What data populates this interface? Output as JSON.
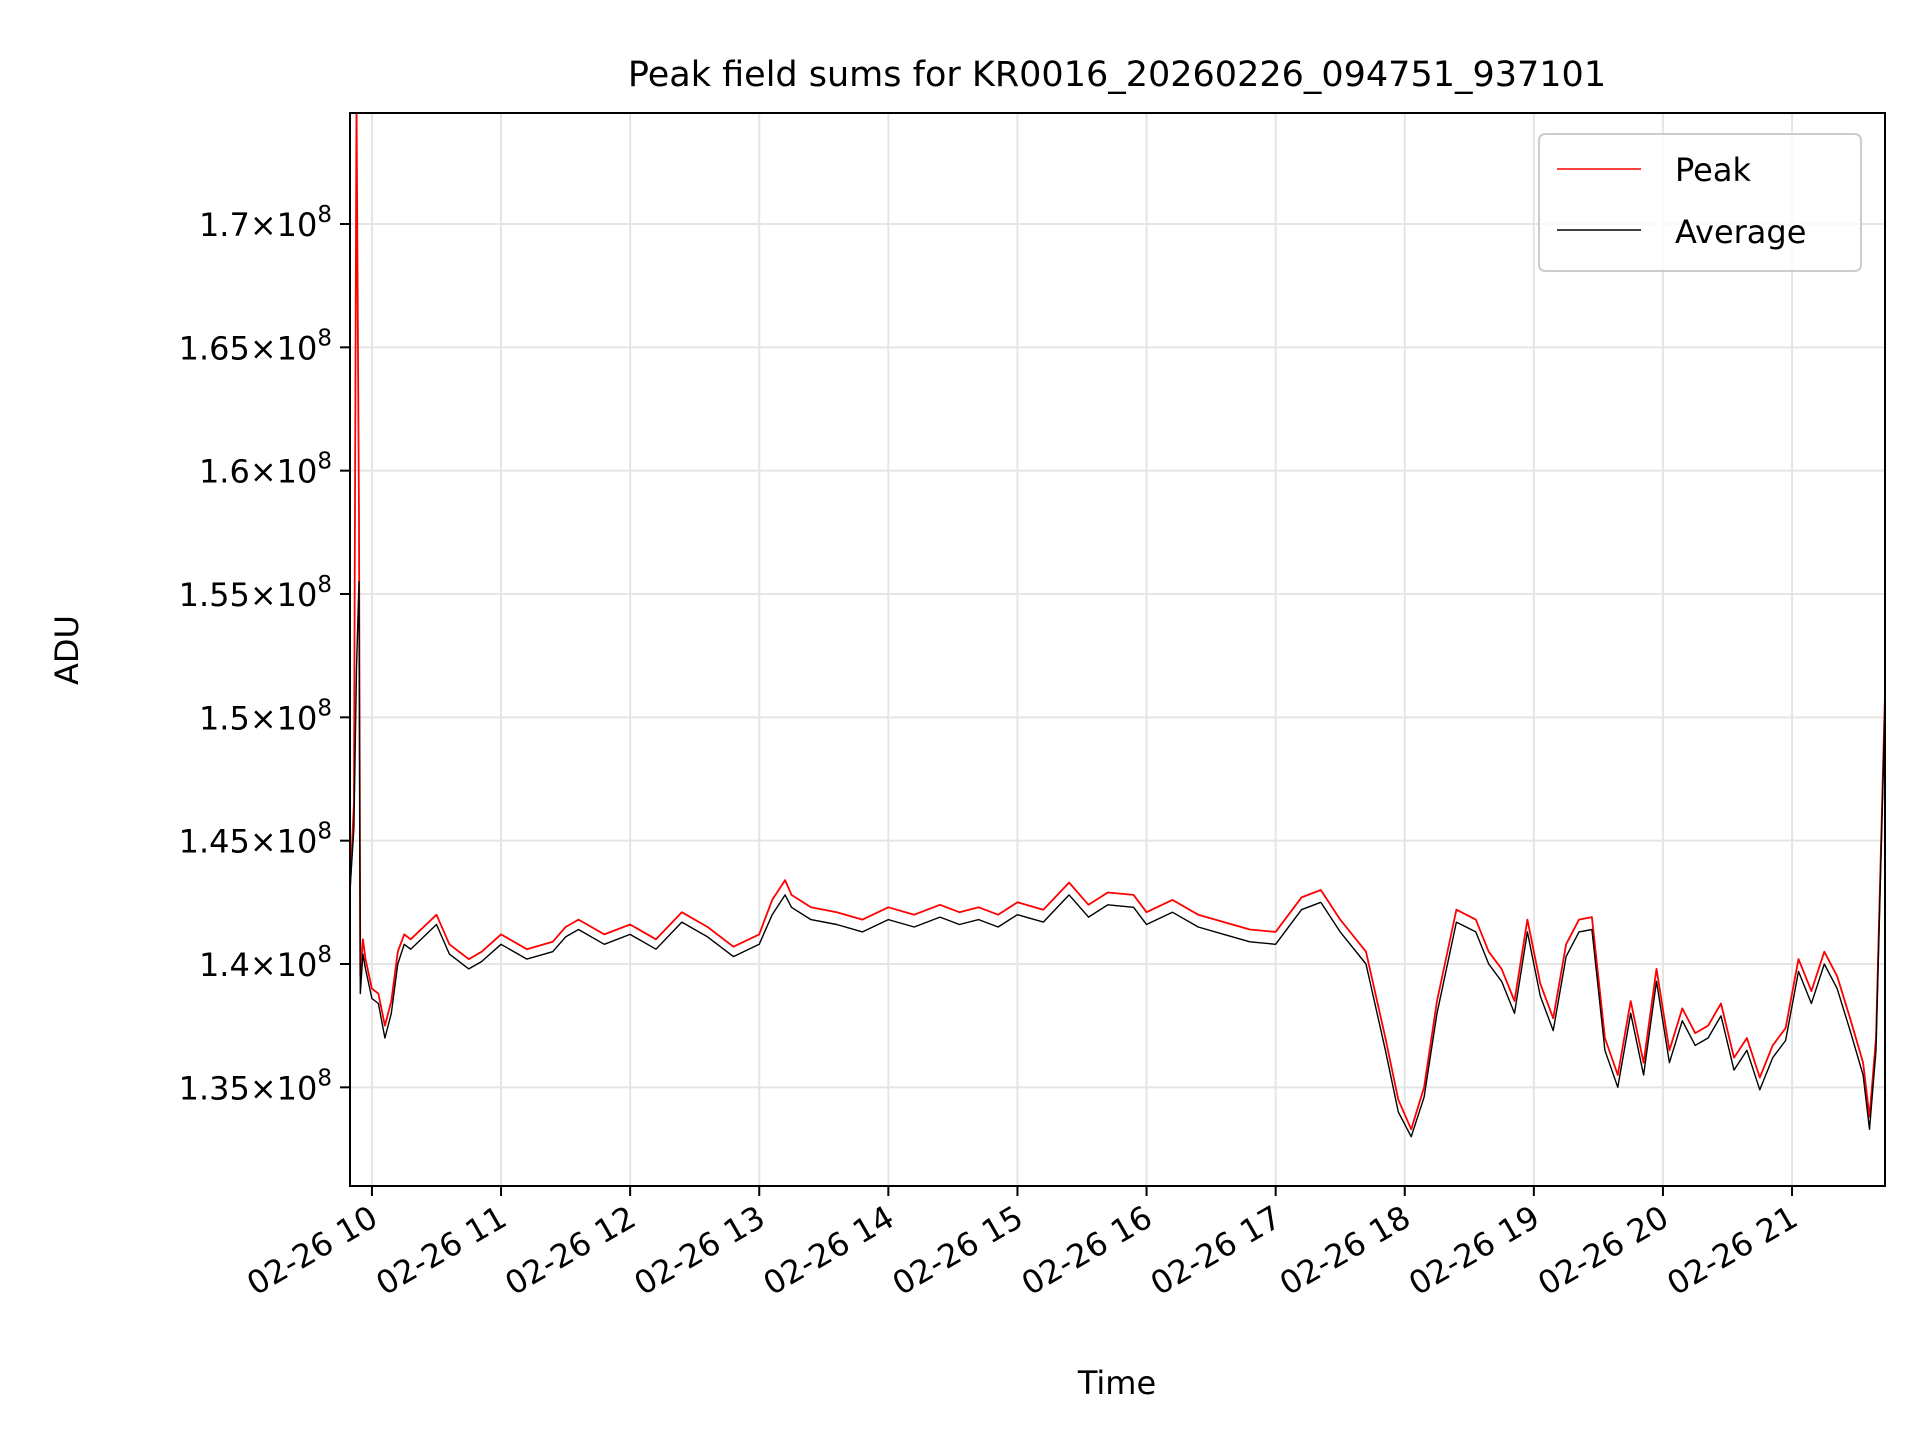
{
  "chart_data": {
    "type": "line",
    "title": "Peak field sums for KR0016_20260226_094751_937101",
    "xlabel": "Time",
    "ylabel": "ADU",
    "xlim_hours": [
      9.83,
      21.72
    ],
    "ylim": [
      131000000,
      174500000
    ],
    "grid": true,
    "legend_position": "upper right",
    "x_ticks": [
      {
        "value": 10,
        "label": "02-26 10"
      },
      {
        "value": 11,
        "label": "02-26 11"
      },
      {
        "value": 12,
        "label": "02-26 12"
      },
      {
        "value": 13,
        "label": "02-26 13"
      },
      {
        "value": 14,
        "label": "02-26 14"
      },
      {
        "value": 15,
        "label": "02-26 15"
      },
      {
        "value": 16,
        "label": "02-26 16"
      },
      {
        "value": 17,
        "label": "02-26 17"
      },
      {
        "value": 18,
        "label": "02-26 18"
      },
      {
        "value": 19,
        "label": "02-26 19"
      },
      {
        "value": 20,
        "label": "02-26 20"
      },
      {
        "value": 21,
        "label": "02-26 21"
      }
    ],
    "y_ticks": [
      {
        "value": 135000000,
        "mantissa": "1.35",
        "base": "10",
        "exp": "8"
      },
      {
        "value": 140000000,
        "mantissa": "1.4",
        "base": "10",
        "exp": "8"
      },
      {
        "value": 145000000,
        "mantissa": "1.45",
        "base": "10",
        "exp": "8"
      },
      {
        "value": 150000000,
        "mantissa": "1.5",
        "base": "10",
        "exp": "8"
      },
      {
        "value": 155000000,
        "mantissa": "1.55",
        "base": "10",
        "exp": "8"
      },
      {
        "value": 160000000,
        "mantissa": "1.6",
        "base": "10",
        "exp": "8"
      },
      {
        "value": 165000000,
        "mantissa": "1.65",
        "base": "10",
        "exp": "8"
      },
      {
        "value": 170000000,
        "mantissa": "1.7",
        "base": "10",
        "exp": "8"
      }
    ],
    "series": [
      {
        "name": "Peak",
        "color": "#ff0000",
        "x": [
          9.83,
          9.86,
          9.88,
          9.9,
          9.91,
          9.93,
          9.95,
          10.0,
          10.05,
          10.1,
          10.15,
          10.2,
          10.25,
          10.3,
          10.4,
          10.5,
          10.6,
          10.75,
          10.85,
          11.0,
          11.2,
          11.4,
          11.5,
          11.6,
          11.8,
          12.0,
          12.2,
          12.4,
          12.6,
          12.8,
          13.0,
          13.1,
          13.2,
          13.25,
          13.4,
          13.6,
          13.8,
          14.0,
          14.2,
          14.4,
          14.55,
          14.7,
          14.85,
          15.0,
          15.2,
          15.4,
          15.55,
          15.7,
          15.9,
          16.0,
          16.2,
          16.4,
          16.6,
          16.8,
          17.0,
          17.2,
          17.35,
          17.5,
          17.7,
          17.85,
          17.95,
          18.05,
          18.15,
          18.25,
          18.4,
          18.55,
          18.65,
          18.75,
          18.85,
          18.95,
          19.05,
          19.15,
          19.25,
          19.35,
          19.45,
          19.55,
          19.65,
          19.75,
          19.85,
          19.95,
          20.05,
          20.15,
          20.25,
          20.35,
          20.45,
          20.55,
          20.65,
          20.75,
          20.85,
          20.95,
          21.05,
          21.15,
          21.25,
          21.35,
          21.45,
          21.55,
          21.6,
          21.65,
          21.72
        ],
        "y": [
          143000000,
          146500000,
          175000000,
          158000000,
          139500000,
          141000000,
          140200000,
          139000000,
          138800000,
          137500000,
          138500000,
          140500000,
          141200000,
          141000000,
          141500000,
          142000000,
          140800000,
          140200000,
          140500000,
          141200000,
          140600000,
          140900000,
          141500000,
          141800000,
          141200000,
          141600000,
          141000000,
          142100000,
          141500000,
          140700000,
          141200000,
          142600000,
          143400000,
          142800000,
          142300000,
          142100000,
          141800000,
          142300000,
          142000000,
          142400000,
          142100000,
          142300000,
          142000000,
          142500000,
          142200000,
          143300000,
          142400000,
          142900000,
          142800000,
          142100000,
          142600000,
          142000000,
          141700000,
          141400000,
          141300000,
          142700000,
          143000000,
          141800000,
          140500000,
          137000000,
          134500000,
          133300000,
          135000000,
          138500000,
          142200000,
          141800000,
          140500000,
          139800000,
          138500000,
          141800000,
          139200000,
          137800000,
          140800000,
          141800000,
          141900000,
          137000000,
          135500000,
          138500000,
          136000000,
          139800000,
          136500000,
          138200000,
          137200000,
          137500000,
          138400000,
          136200000,
          137000000,
          135400000,
          136700000,
          137400000,
          140200000,
          138900000,
          140500000,
          139500000,
          137800000,
          136000000,
          133800000,
          137000000,
          151000000
        ]
      },
      {
        "name": "Average",
        "color": "#000000",
        "x": [
          9.83,
          9.86,
          9.88,
          9.9,
          9.91,
          9.93,
          9.95,
          10.0,
          10.05,
          10.1,
          10.15,
          10.2,
          10.25,
          10.3,
          10.4,
          10.5,
          10.6,
          10.75,
          10.85,
          11.0,
          11.2,
          11.4,
          11.5,
          11.6,
          11.8,
          12.0,
          12.2,
          12.4,
          12.6,
          12.8,
          13.0,
          13.1,
          13.2,
          13.25,
          13.4,
          13.6,
          13.8,
          14.0,
          14.2,
          14.4,
          14.55,
          14.7,
          14.85,
          15.0,
          15.2,
          15.4,
          15.55,
          15.7,
          15.9,
          16.0,
          16.2,
          16.4,
          16.6,
          16.8,
          17.0,
          17.2,
          17.35,
          17.5,
          17.7,
          17.85,
          17.95,
          18.05,
          18.15,
          18.25,
          18.4,
          18.55,
          18.65,
          18.75,
          18.85,
          18.95,
          19.05,
          19.15,
          19.25,
          19.35,
          19.45,
          19.55,
          19.65,
          19.75,
          19.85,
          19.95,
          20.05,
          20.15,
          20.25,
          20.35,
          20.45,
          20.55,
          20.65,
          20.75,
          20.85,
          20.95,
          21.05,
          21.15,
          21.25,
          21.35,
          21.45,
          21.55,
          21.6,
          21.65,
          21.72
        ],
        "y": [
          143000000,
          145500000,
          152000000,
          155500000,
          138800000,
          140400000,
          139800000,
          138600000,
          138400000,
          137000000,
          138000000,
          140000000,
          140800000,
          140600000,
          141100000,
          141600000,
          140400000,
          139800000,
          140100000,
          140800000,
          140200000,
          140500000,
          141100000,
          141400000,
          140800000,
          141200000,
          140600000,
          141700000,
          141100000,
          140300000,
          140800000,
          142000000,
          142800000,
          142300000,
          141800000,
          141600000,
          141300000,
          141800000,
          141500000,
          141900000,
          141600000,
          141800000,
          141500000,
          142000000,
          141700000,
          142800000,
          141900000,
          142400000,
          142300000,
          141600000,
          142100000,
          141500000,
          141200000,
          140900000,
          140800000,
          142200000,
          142500000,
          141300000,
          140000000,
          136500000,
          134000000,
          133000000,
          134600000,
          138000000,
          141700000,
          141300000,
          140000000,
          139300000,
          138000000,
          141300000,
          138700000,
          137300000,
          140300000,
          141300000,
          141400000,
          136500000,
          135000000,
          138000000,
          135500000,
          139300000,
          136000000,
          137700000,
          136700000,
          137000000,
          137900000,
          135700000,
          136500000,
          134900000,
          136200000,
          136900000,
          139700000,
          138400000,
          140000000,
          139000000,
          137300000,
          135500000,
          133300000,
          136500000,
          150500000
        ]
      }
    ]
  }
}
